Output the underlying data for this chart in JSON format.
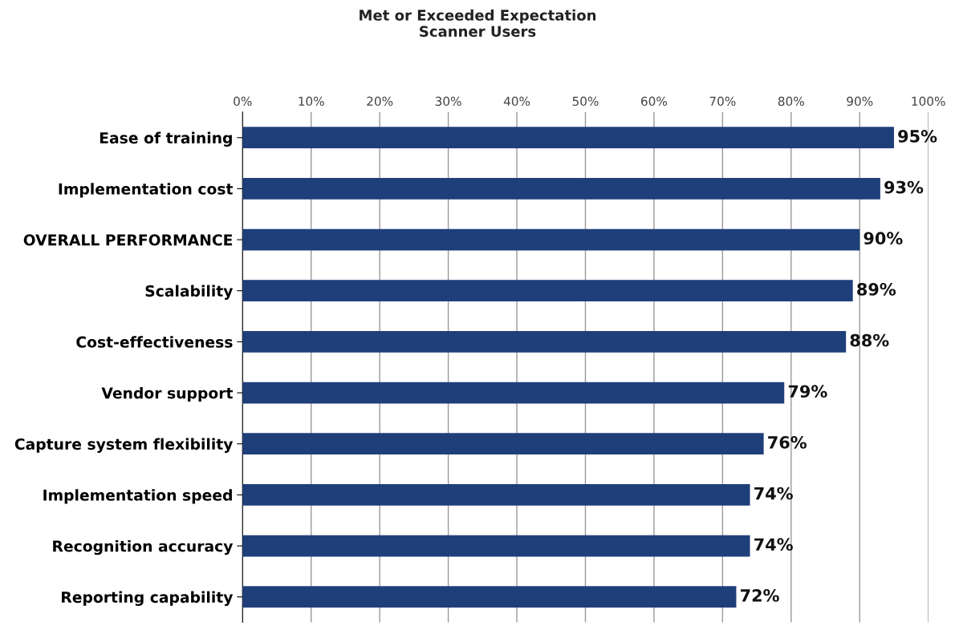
{
  "chart_data": {
    "type": "bar",
    "orientation": "horizontal",
    "title": "Met or Exceeded Expectation\nScanner Users",
    "categories": [
      "Ease of training",
      "Implementation cost",
      "OVERALL PERFORMANCE",
      "Scalability",
      "Cost-effectiveness",
      "Vendor support",
      "Capture system flexibility",
      "Implementation speed",
      "Recognition accuracy",
      "Reporting capability"
    ],
    "values": [
      95,
      93,
      90,
      89,
      88,
      79,
      76,
      74,
      74,
      72
    ],
    "value_labels": [
      "95%",
      "93%",
      "90%",
      "89%",
      "88%",
      "79%",
      "76%",
      "74%",
      "74%",
      "72%"
    ],
    "color": "#1f3f7a",
    "xlim": [
      0,
      100
    ],
    "xticks": [
      {
        "value": 0,
        "label": "0%"
      },
      {
        "value": 10,
        "label": "10%"
      },
      {
        "value": 20,
        "label": "20%"
      },
      {
        "value": 30,
        "label": "30%"
      },
      {
        "value": 40,
        "label": "40%"
      },
      {
        "value": 50,
        "label": "50%"
      },
      {
        "value": 60,
        "label": "60%"
      },
      {
        "value": 70,
        "label": "70%"
      },
      {
        "value": 80,
        "label": "80%"
      },
      {
        "value": 90,
        "label": "90%"
      },
      {
        "value": 100,
        "label": "100%"
      }
    ],
    "grid": "x",
    "legend": false
  }
}
